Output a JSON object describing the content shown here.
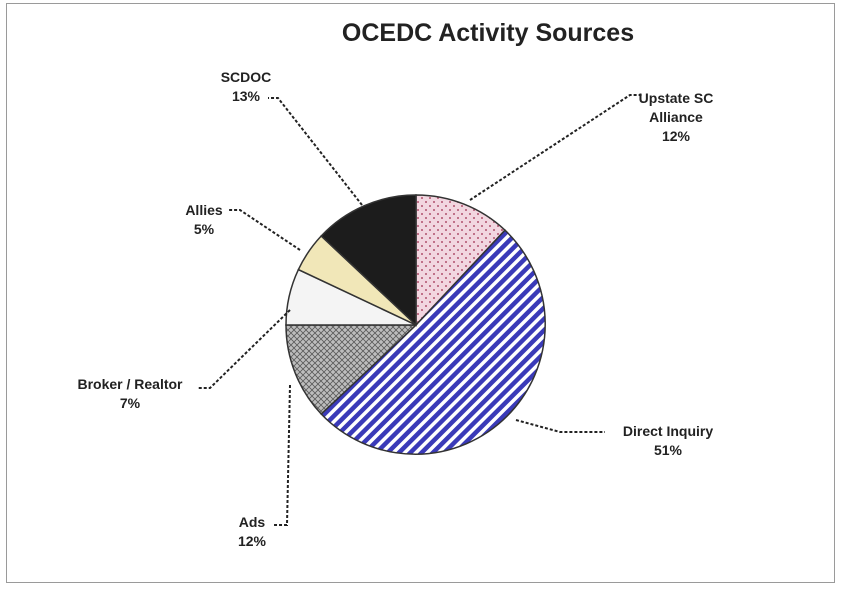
{
  "chart_data": {
    "type": "pie",
    "title": "OCEDC Activity Sources",
    "slices": [
      {
        "name": "Upstate SC Alliance",
        "label_lines": [
          "Upstate SC",
          "Alliance"
        ],
        "value": 12,
        "value_label": "12%",
        "color": "#f2d6e0",
        "pattern": "dots"
      },
      {
        "name": "Direct Inquiry",
        "label_lines": [
          "Direct Inquiry"
        ],
        "value": 51,
        "value_label": "51%",
        "color": "#3a3ab8",
        "pattern": "diagonal-stripes"
      },
      {
        "name": "Ads",
        "label_lines": [
          "Ads"
        ],
        "value": 12,
        "value_label": "12%",
        "color": "#a0a0a0",
        "pattern": "crosshatch"
      },
      {
        "name": "Broker / Realtor",
        "label_lines": [
          "Broker / Realtor"
        ],
        "value": 7,
        "value_label": "7%",
        "color": "#f4f4f4",
        "pattern": "solid"
      },
      {
        "name": "Allies",
        "label_lines": [
          "Allies"
        ],
        "value": 5,
        "value_label": "5%",
        "color": "#f1e7b8",
        "pattern": "solid"
      },
      {
        "name": "SCDOC",
        "label_lines": [
          "SCDOC"
        ],
        "value": 13,
        "value_label": "13%",
        "color": "#1c1c1c",
        "pattern": "solid"
      }
    ],
    "start": "12 o'clock",
    "direction": "clockwise",
    "legend": "none (data labels with leader lines)"
  }
}
